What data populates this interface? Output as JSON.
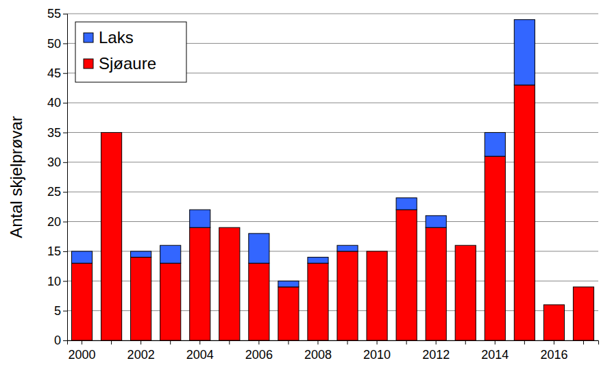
{
  "chart_data": {
    "type": "bar",
    "stacked": true,
    "y_label": "Antal skjelprøvar",
    "categories": [
      "2000",
      null,
      "2002",
      null,
      "2004",
      null,
      "2006",
      null,
      "2008",
      null,
      "2010",
      null,
      "2012",
      null,
      "2014",
      null,
      "2016",
      null
    ],
    "series": [
      {
        "name": "Sjøaure",
        "color": "#ff0000",
        "values": [
          13,
          35,
          14,
          13,
          19,
          19,
          13,
          9,
          13,
          15,
          15,
          22,
          19,
          16,
          31,
          43,
          6,
          9
        ]
      },
      {
        "name": "Laks",
        "color": "#3366ff",
        "values": [
          2,
          0,
          1,
          3,
          3,
          0,
          5,
          1,
          1,
          1,
          0,
          2,
          2,
          0,
          4,
          11,
          0,
          0
        ]
      }
    ],
    "ylim": [
      0,
      55
    ],
    "yticks": [
      0,
      5,
      10,
      15,
      20,
      25,
      30,
      35,
      40,
      45,
      50,
      55
    ],
    "grid": true,
    "legend": "top-left"
  }
}
